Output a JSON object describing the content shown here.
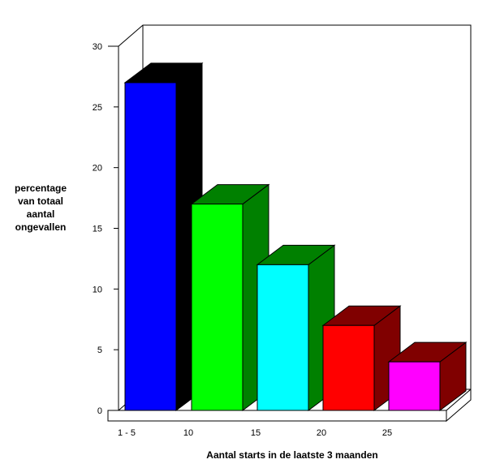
{
  "chart_data": {
    "type": "bar",
    "categories": [
      "1 - 5",
      "10",
      "15",
      "20",
      "25"
    ],
    "values": [
      27,
      17,
      12,
      7,
      4
    ],
    "ylim": [
      0,
      30
    ],
    "yticks": [
      0,
      5,
      10,
      15,
      20,
      25,
      30
    ],
    "xlabel": "Aantal starts in de laatste 3 maanden",
    "ylabel_lines": [
      "percentage",
      "van totaal",
      "aantal",
      "ongevallen"
    ],
    "bar_colors": [
      {
        "front": "#0000ff",
        "side": "#000000",
        "top": "#000000"
      },
      {
        "front": "#00ff00",
        "side": "#008000",
        "top": "#008000"
      },
      {
        "front": "#00ffff",
        "side": "#008000",
        "top": "#008000"
      },
      {
        "front": "#ff0000",
        "side": "#800000",
        "top": "#800000"
      },
      {
        "front": "#ff00ff",
        "side": "#800000",
        "top": "#800000"
      }
    ],
    "grid": false,
    "style": "3d"
  }
}
